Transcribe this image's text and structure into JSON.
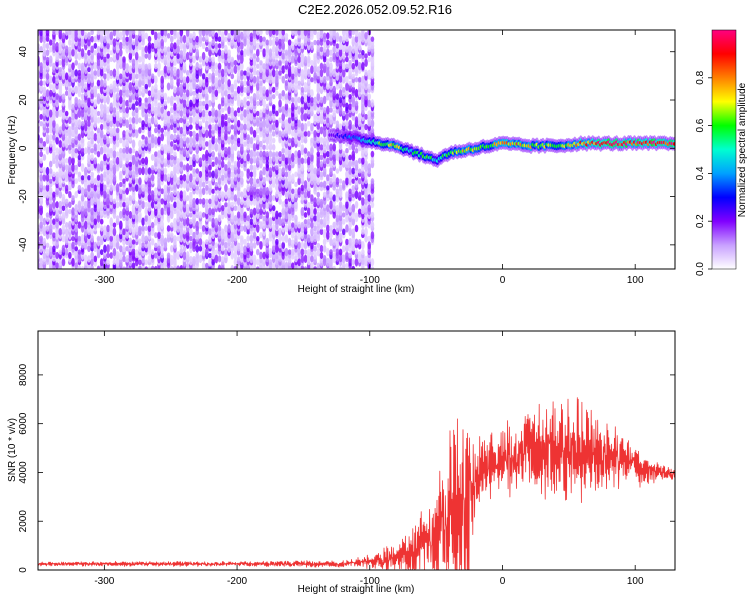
{
  "figure": {
    "title": "C2E2.2026.052.09.52.R16"
  },
  "chart_data": [
    {
      "type": "heatmap",
      "title": "C2E2.2026.052.09.52.R16",
      "xlabel": "Height of straight line (km)",
      "ylabel": "Frequency (Hz)",
      "xlim": [
        -350,
        130
      ],
      "ylim": [
        -50,
        49
      ],
      "x_ticks": [
        -300,
        -200,
        -100,
        0,
        100
      ],
      "y_ticks": [
        -40,
        -20,
        0,
        20,
        40
      ],
      "colorbar": {
        "label": "Normalized spectral amplitude",
        "range": [
          0.0,
          1.0
        ],
        "ticks": [
          0.0,
          0.2,
          0.4,
          0.6,
          0.8
        ],
        "tick_labels": [
          "0.0",
          "0.2",
          "0.4",
          "0.6",
          "0.8"
        ],
        "colormap": [
          "#ffffff",
          "#c8a0ff",
          "#8000ff",
          "#0000ff",
          "#00a0ff",
          "#00ffd0",
          "#00ff00",
          "#ffff00",
          "#ff8000",
          "#ff0000",
          "#ff0080"
        ]
      },
      "noise_region": {
        "x_range": [
          -350,
          -97
        ],
        "amplitude_range": [
          0.0,
          0.15
        ]
      },
      "signal_ridge": {
        "x": [
          -130,
          -120,
          -110,
          -100,
          -90,
          -80,
          -70,
          -60,
          -50,
          -40,
          -30,
          -20,
          -10,
          0,
          20,
          40,
          60,
          80,
          100,
          120,
          130
        ],
        "frequency": [
          6,
          5,
          4,
          3,
          2,
          1,
          -1,
          -3,
          -5,
          -2,
          -1,
          0,
          1,
          2,
          1,
          1,
          2,
          2,
          2,
          2,
          2
        ],
        "amplitude": [
          0.2,
          0.3,
          0.4,
          0.5,
          0.6,
          0.7,
          0.5,
          0.6,
          0.5,
          0.6,
          0.7,
          0.7,
          0.6,
          0.8,
          0.7,
          0.6,
          0.8,
          0.95,
          0.9,
          0.95,
          0.9
        ]
      }
    },
    {
      "type": "line",
      "xlabel": "Height of straight line (km)",
      "ylabel": "SNR (10 * v/v)",
      "xlim": [
        -350,
        130
      ],
      "ylim": [
        0,
        9800
      ],
      "x_ticks": [
        -300,
        -200,
        -100,
        0,
        100
      ],
      "y_ticks": [
        0,
        2000,
        4000,
        6000,
        8000
      ],
      "color": "#ee3333",
      "envelope": {
        "x": [
          -350,
          -200,
          -120,
          -100,
          -90,
          -80,
          -70,
          -60,
          -50,
          -45,
          -40,
          -35,
          -30,
          -25,
          -20,
          -15,
          -10,
          0,
          10,
          20,
          30,
          40,
          50,
          60,
          70,
          80,
          90,
          100,
          110,
          120,
          130
        ],
        "baseline": [
          250,
          250,
          250,
          350,
          400,
          500,
          700,
          1000,
          1300,
          1800,
          2000,
          2200,
          2200,
          3000,
          3800,
          4200,
          4300,
          4500,
          4600,
          4800,
          4900,
          5000,
          5000,
          4900,
          4800,
          4600,
          4500,
          4300,
          4100,
          4000,
          3900
        ],
        "amplitude": [
          80,
          90,
          120,
          250,
          400,
          600,
          900,
          1200,
          1600,
          2500,
          3500,
          4500,
          4200,
          3000,
          1500,
          1300,
          1200,
          1300,
          1400,
          1500,
          1700,
          1900,
          1800,
          1700,
          1500,
          1300,
          1000,
          800,
          500,
          300,
          250
        ]
      }
    }
  ]
}
